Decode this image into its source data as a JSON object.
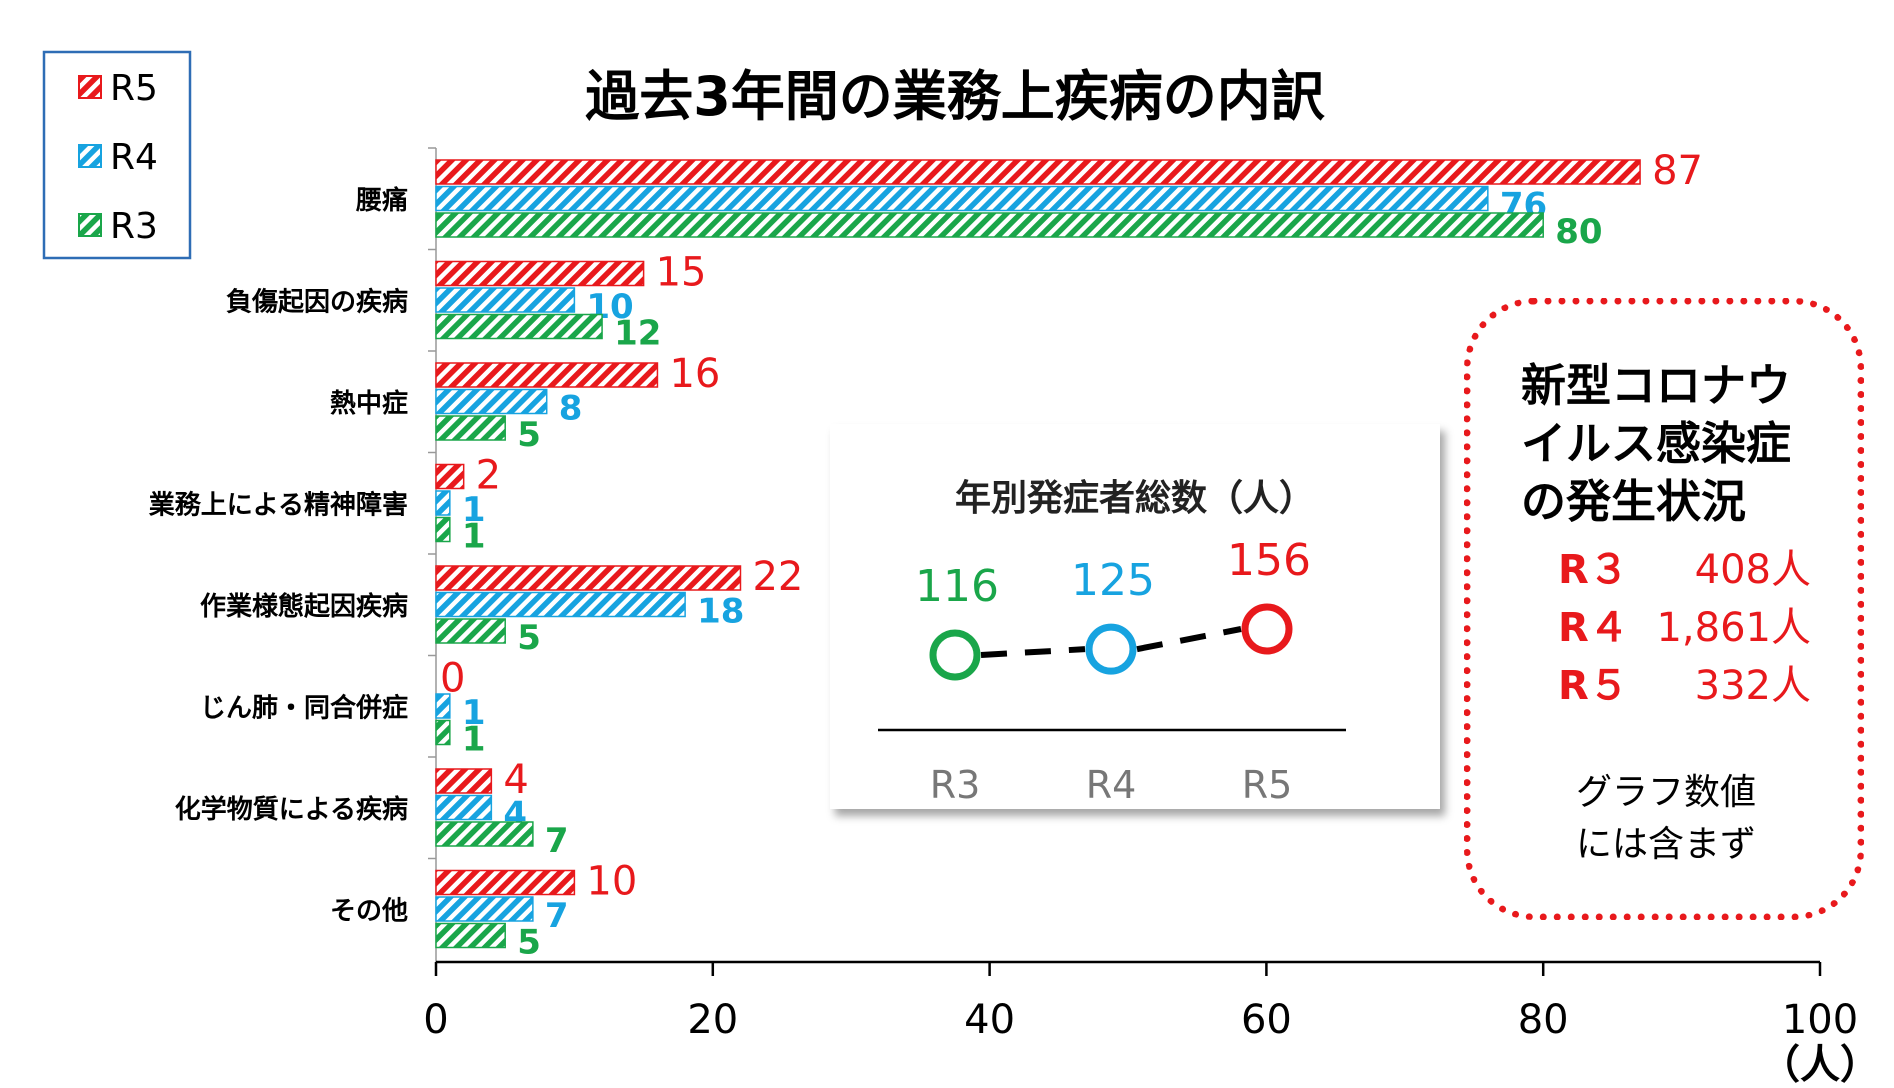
{
  "chart_data": {
    "type": "bar",
    "orientation": "horizontal",
    "title": "過去3年間の業務上疾病の内訳",
    "categories": [
      "腰痛",
      "負傷起因の疾病",
      "熱中症",
      "業務上による精神障害",
      "作業様態起因疾病",
      "じん肺・同合併症",
      "化学物質による疾病",
      "その他"
    ],
    "series": [
      {
        "name": "R5",
        "values": [
          87,
          15,
          16,
          2,
          22,
          0,
          4,
          10
        ],
        "color": "#e8191c"
      },
      {
        "name": "R4",
        "values": [
          76,
          10,
          8,
          1,
          18,
          1,
          4,
          7
        ],
        "color": "#17a3e0"
      },
      {
        "name": "R3",
        "values": [
          80,
          12,
          5,
          1,
          5,
          1,
          7,
          5
        ],
        "color": "#1aa64a"
      }
    ],
    "xlim": [
      0,
      100
    ],
    "xticks": [
      0,
      20,
      40,
      60,
      80,
      100
    ],
    "xlabel": "（人）",
    "legend_position": "top-left",
    "bar_fill": "diagonal-hatch"
  },
  "inset_chart": {
    "type": "line",
    "title": "年別発症者総数（人）",
    "categories": [
      "R3",
      "R4",
      "R5"
    ],
    "values": [
      116,
      125,
      156
    ],
    "colors": [
      "#1aa64a",
      "#17a3e0",
      "#e8191c"
    ],
    "line_style": "dashed"
  },
  "covid_box": {
    "title_lines": [
      "新型コロナウ",
      "イルス感染症",
      "の発生状況"
    ],
    "rows": [
      {
        "year": "R３",
        "count": "408人"
      },
      {
        "year": "R４",
        "count": "1,861人"
      },
      {
        "year": "R５",
        "count": "332人"
      }
    ],
    "note_lines": [
      "グラフ数値",
      "には含まず"
    ],
    "border_color": "#e8191c"
  }
}
